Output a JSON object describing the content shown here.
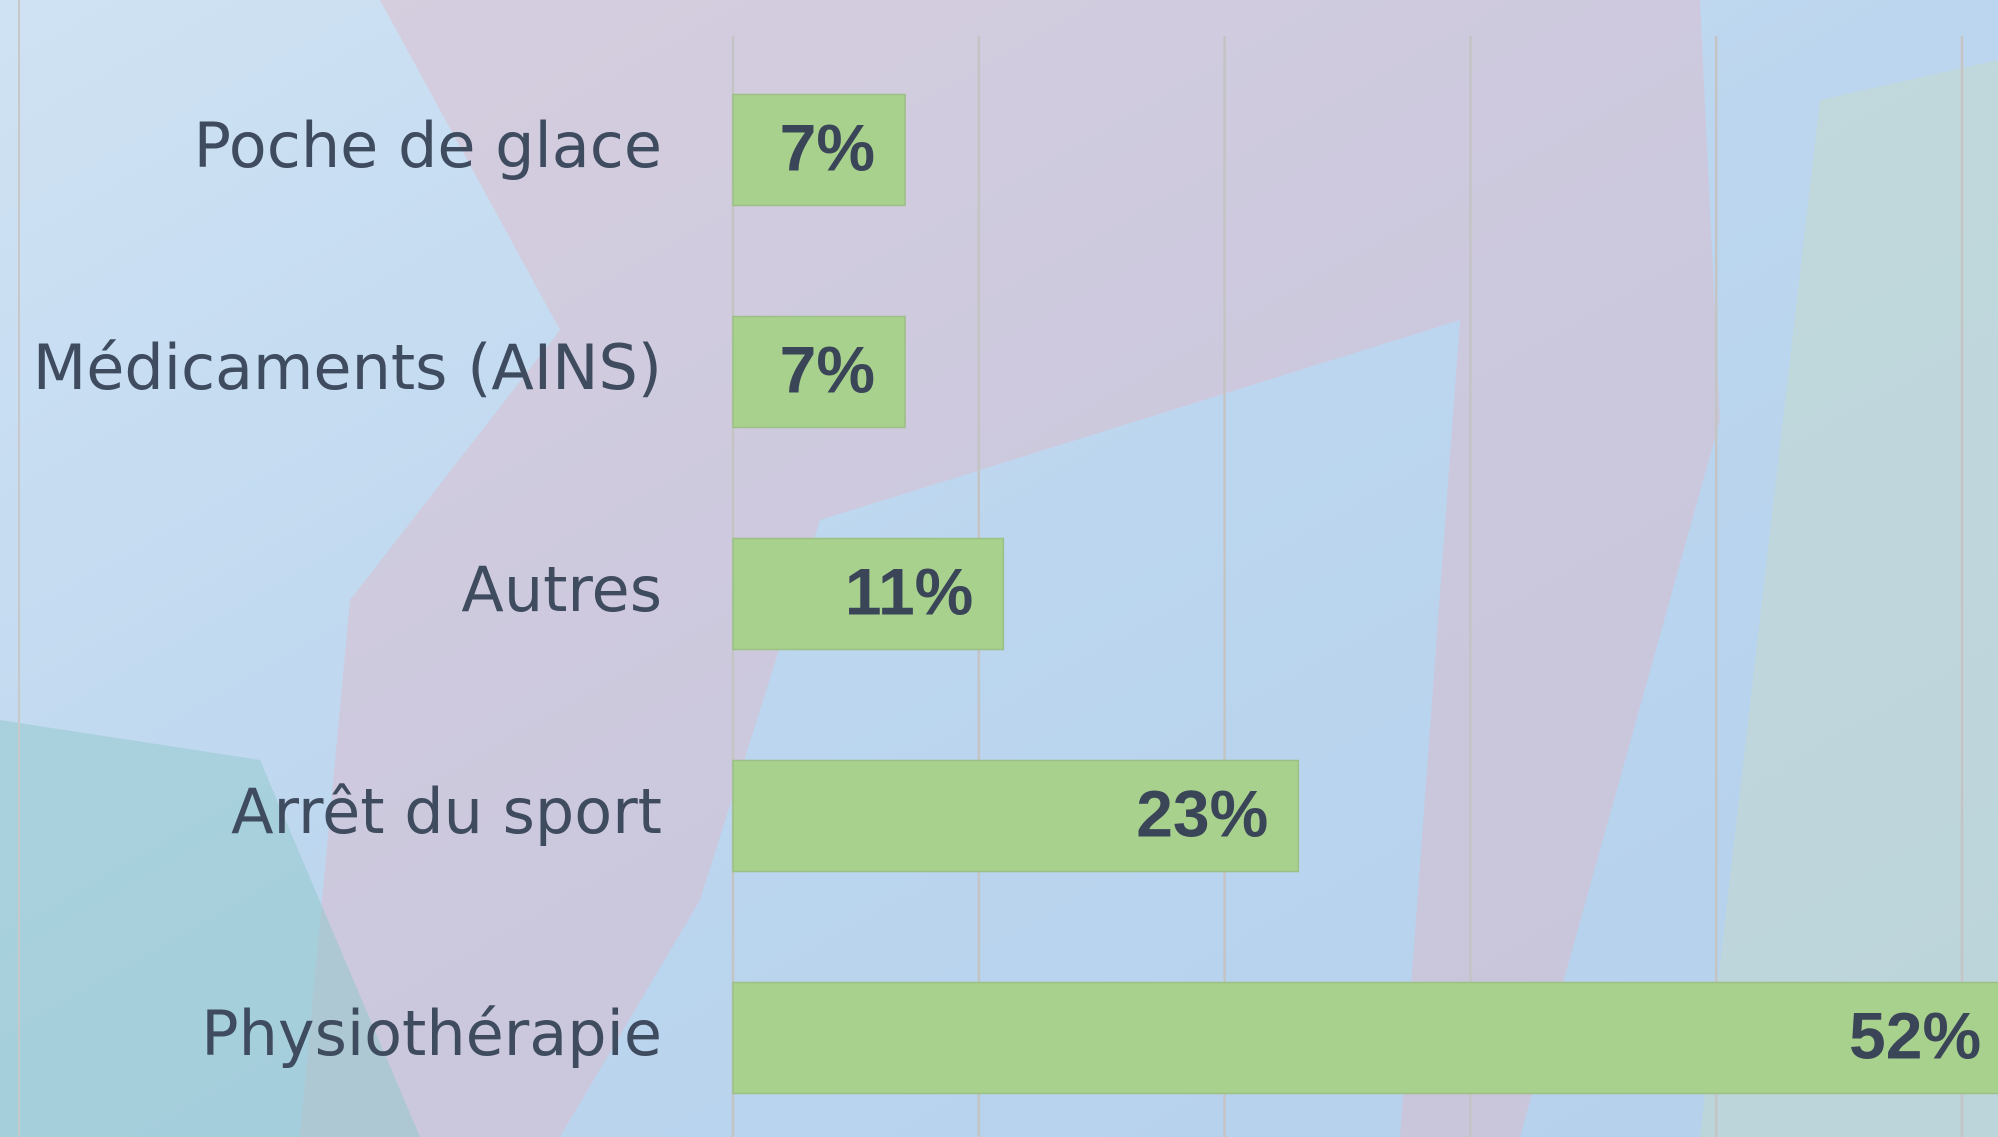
{
  "chart_data": {
    "type": "bar",
    "orientation": "horizontal",
    "categories": [
      "Poche de glace",
      "Médicaments (AINS)",
      "Autres",
      "Arrêt du sport",
      "Physiothérapie"
    ],
    "values": [
      7,
      7,
      11,
      23,
      52
    ],
    "value_labels": [
      "7%",
      "7%",
      "11%",
      "23%",
      "52%"
    ],
    "color": "#a9d18e",
    "xlim": [
      0,
      50
    ],
    "xticks": [
      0,
      10,
      20,
      30,
      40,
      50
    ],
    "grid": true
  }
}
